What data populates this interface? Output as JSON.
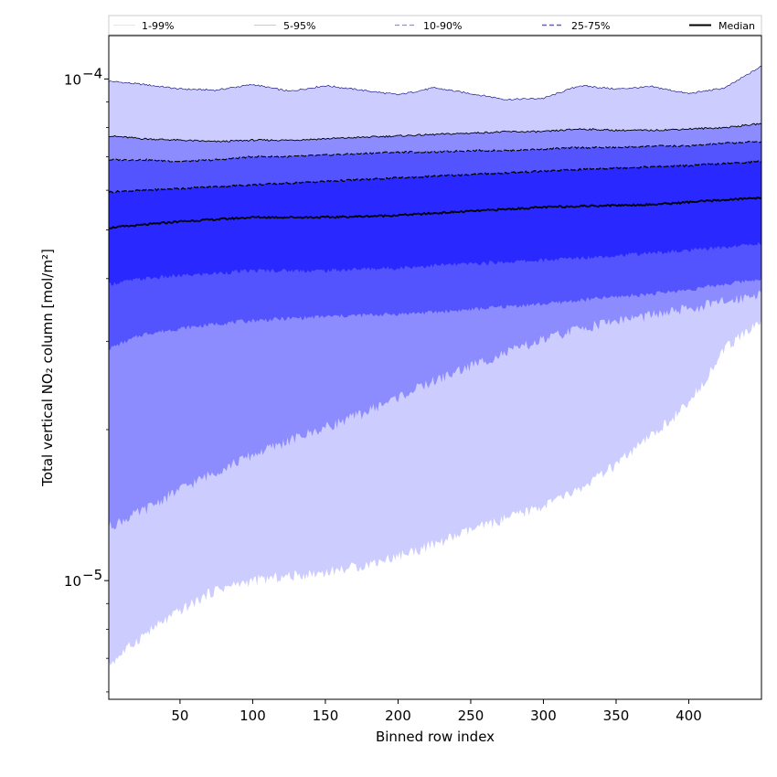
{
  "chart_data": {
    "type": "area",
    "title": "",
    "xlabel": "Binned row index",
    "ylabel": "Total vertical NO₂ column [mol/m²]",
    "y_scale": "log",
    "xlim": [
      1,
      450
    ],
    "ylim": [
      5.8e-06,
      0.000122
    ],
    "grid": false,
    "legend_placement": "top, above plot",
    "x_ticks": [
      50,
      100,
      150,
      200,
      250,
      300,
      350,
      400
    ],
    "x_tick_labels": [
      "50",
      "100",
      "150",
      "200",
      "250",
      "300",
      "350",
      "400"
    ],
    "y_ticks": [
      1e-05,
      0.0001
    ],
    "y_tick_labels": [
      {
        "base": "10",
        "exp": "−5"
      },
      {
        "base": "10",
        "exp": "−4"
      }
    ],
    "colors": {
      "band_1_99": "#ccccff",
      "band_5_95": "#8c8cff",
      "band_10_90": "#5454ff",
      "band_25_75": "#2828ff",
      "median": "#000000",
      "edge_1_99": "#000080",
      "edge_dashed": "#000000"
    },
    "legend": [
      {
        "label": "1-99%",
        "color": "#dcdcf4",
        "dash": "none",
        "width": 0.8
      },
      {
        "label": "5-95%",
        "color": "#b4b4e6",
        "dash": "none",
        "width": 0.8
      },
      {
        "label": "10-90%",
        "color": "#8c8cf0",
        "dash": "5,3",
        "width": 1.2
      },
      {
        "label": "25-75%",
        "color": "#5a5af0",
        "dash": "5,3",
        "width": 1.5
      },
      {
        "label": "Median",
        "color": "#000000",
        "dash": "none",
        "width": 2
      }
    ],
    "x": [
      1,
      25,
      50,
      75,
      100,
      125,
      150,
      175,
      200,
      225,
      250,
      275,
      300,
      325,
      350,
      375,
      400,
      425,
      450
    ],
    "series": [
      {
        "name": "1-99%",
        "band": "upper",
        "values": [
          9.9e-05,
          9.75e-05,
          9.55e-05,
          9.5e-05,
          9.75e-05,
          9.45e-05,
          9.7e-05,
          9.5e-05,
          9.3e-05,
          9.6e-05,
          9.35e-05,
          9.1e-05,
          9.15e-05,
          9.7e-05,
          9.55e-05,
          9.65e-05,
          9.35e-05,
          9.6e-05,
          0.000106
        ]
      },
      {
        "name": "5-95%",
        "band": "upper",
        "values": [
          7.7e-05,
          7.6e-05,
          7.55e-05,
          7.5e-05,
          7.55e-05,
          7.55e-05,
          7.6e-05,
          7.65e-05,
          7.7e-05,
          7.75e-05,
          7.8e-05,
          7.85e-05,
          7.85e-05,
          7.95e-05,
          7.9e-05,
          7.9e-05,
          7.95e-05,
          8e-05,
          8.15e-05
        ]
      },
      {
        "name": "10-90%",
        "band": "upper",
        "values": [
          6.9e-05,
          6.9e-05,
          6.85e-05,
          6.9e-05,
          7e-05,
          7e-05,
          7.05e-05,
          7.1e-05,
          7.15e-05,
          7.15e-05,
          7.2e-05,
          7.2e-05,
          7.25e-05,
          7.3e-05,
          7.3e-05,
          7.35e-05,
          7.35e-05,
          7.45e-05,
          7.5e-05
        ]
      },
      {
        "name": "25-75%",
        "band": "upper",
        "values": [
          5.95e-05,
          6e-05,
          6.05e-05,
          6.1e-05,
          6.15e-05,
          6.2e-05,
          6.25e-05,
          6.3e-05,
          6.35e-05,
          6.4e-05,
          6.45e-05,
          6.5e-05,
          6.55e-05,
          6.6e-05,
          6.65e-05,
          6.68e-05,
          6.72e-05,
          6.78e-05,
          6.85e-05
        ]
      },
      {
        "name": "Median",
        "values": [
          5.05e-05,
          5.12e-05,
          5.2e-05,
          5.25e-05,
          5.3e-05,
          5.3e-05,
          5.3e-05,
          5.32e-05,
          5.35e-05,
          5.4e-05,
          5.45e-05,
          5.5e-05,
          5.55e-05,
          5.58e-05,
          5.6e-05,
          5.62e-05,
          5.68e-05,
          5.74e-05,
          5.8e-05
        ]
      },
      {
        "name": "25-75%",
        "band": "lower",
        "values": [
          3.9e-05,
          4e-05,
          4.05e-05,
          4.1e-05,
          4.15e-05,
          4.15e-05,
          4.15e-05,
          4.18e-05,
          4.2e-05,
          4.25e-05,
          4.28e-05,
          4.32e-05,
          4.35e-05,
          4.4e-05,
          4.45e-05,
          4.5e-05,
          4.55e-05,
          4.62e-05,
          4.7e-05
        ]
      },
      {
        "name": "10-90%",
        "band": "lower",
        "values": [
          2.9e-05,
          3.1e-05,
          3.18e-05,
          3.25e-05,
          3.3e-05,
          3.33e-05,
          3.36e-05,
          3.38e-05,
          3.4e-05,
          3.43e-05,
          3.47e-05,
          3.52e-05,
          3.56e-05,
          3.62e-05,
          3.68e-05,
          3.73e-05,
          3.8e-05,
          3.9e-05,
          4e-05
        ]
      },
      {
        "name": "5-95%",
        "band": "lower",
        "values": [
          1.28e-05,
          1.38e-05,
          1.52e-05,
          1.65e-05,
          1.78e-05,
          1.9e-05,
          2.02e-05,
          2.15e-05,
          2.32e-05,
          2.5e-05,
          2.68e-05,
          2.85e-05,
          3.02e-05,
          3.18e-05,
          3.3e-05,
          3.38e-05,
          3.48e-05,
          3.6e-05,
          3.75e-05
        ]
      },
      {
        "name": "1-99%",
        "band": "lower",
        "values": [
          6.8e-06,
          7.8e-06,
          8.7e-06,
          9.6e-06,
          1e-05,
          1.02e-05,
          1.04e-05,
          1.07e-05,
          1.12e-05,
          1.18e-05,
          1.26e-05,
          1.33e-05,
          1.41e-05,
          1.52e-05,
          1.7e-05,
          1.95e-05,
          2.25e-05,
          2.9e-05,
          3.3e-05
        ]
      }
    ]
  }
}
